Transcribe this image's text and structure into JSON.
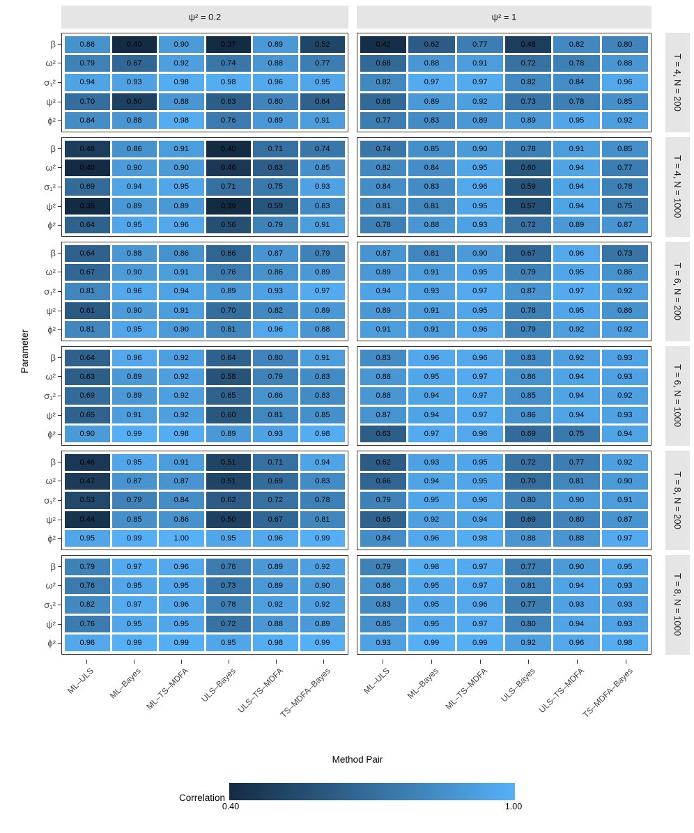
{
  "chart_data": {
    "type": "heatmap",
    "title": "",
    "xlabel": "Method Pair",
    "ylabel": "Parameter",
    "facet_cols": [
      "ψ² = 0.2",
      "ψ² = 1"
    ],
    "facet_rows": [
      "T = 4, N = 200",
      "T = 4, N = 1000",
      "T = 6, N = 200",
      "T = 6, N = 1000",
      "T = 8, N = 200",
      "T = 8, N = 1000"
    ],
    "x_categories": [
      "ML–ULS",
      "ML–Bayes",
      "ML–TS–MDFA",
      "ULS–Bayes",
      "ULS–TS–MDFA",
      "TS–MDFA–Bayes"
    ],
    "y_categories": [
      "β",
      "ω²",
      "σ₁²",
      "ψ²",
      "ϕ²"
    ],
    "legend": {
      "title": "Correlation",
      "min_label": "0.40",
      "max_label": "1.00",
      "domain": [
        0.4,
        1.0
      ],
      "low_color": "#132B43",
      "high_color": "#56B1F7"
    },
    "facets": [
      {
        "col_label": "ψ² = 0.2",
        "row_label": "T = 4, N = 200",
        "values": [
          [
            0.86,
            0.4,
            0.9,
            0.37,
            0.89,
            0.52
          ],
          [
            0.79,
            0.67,
            0.92,
            0.74,
            0.88,
            0.77
          ],
          [
            0.94,
            0.93,
            0.98,
            0.98,
            0.96,
            0.95
          ],
          [
            0.7,
            0.5,
            0.88,
            0.63,
            0.8,
            0.64
          ],
          [
            0.84,
            0.88,
            0.98,
            0.76,
            0.89,
            0.91
          ]
        ]
      },
      {
        "col_label": "ψ² = 1",
        "row_label": "T = 4, N = 200",
        "values": [
          [
            0.42,
            0.62,
            0.77,
            0.48,
            0.82,
            0.8
          ],
          [
            0.68,
            0.88,
            0.91,
            0.72,
            0.78,
            0.88
          ],
          [
            0.82,
            0.97,
            0.97,
            0.82,
            0.84,
            0.96
          ],
          [
            0.68,
            0.89,
            0.92,
            0.73,
            0.78,
            0.85
          ],
          [
            0.77,
            0.83,
            0.89,
            0.89,
            0.95,
            0.92
          ]
        ]
      },
      {
        "col_label": "ψ² = 0.2",
        "row_label": "T = 4, N = 1000",
        "values": [
          [
            0.48,
            0.86,
            0.91,
            0.4,
            0.71,
            0.74
          ],
          [
            0.4,
            0.9,
            0.9,
            0.46,
            0.63,
            0.85
          ],
          [
            0.69,
            0.94,
            0.95,
            0.71,
            0.75,
            0.93
          ],
          [
            0.35,
            0.89,
            0.89,
            0.39,
            0.59,
            0.83
          ],
          [
            0.64,
            0.95,
            0.96,
            0.56,
            0.79,
            0.91
          ]
        ]
      },
      {
        "col_label": "ψ² = 1",
        "row_label": "T = 4, N = 1000",
        "values": [
          [
            0.74,
            0.85,
            0.9,
            0.78,
            0.91,
            0.85
          ],
          [
            0.82,
            0.84,
            0.95,
            0.6,
            0.94,
            0.77
          ],
          [
            0.84,
            0.83,
            0.96,
            0.59,
            0.94,
            0.78
          ],
          [
            0.81,
            0.81,
            0.95,
            0.57,
            0.94,
            0.75
          ],
          [
            0.78,
            0.88,
            0.93,
            0.72,
            0.89,
            0.87
          ]
        ]
      },
      {
        "col_label": "ψ² = 0.2",
        "row_label": "T = 6, N = 200",
        "values": [
          [
            0.64,
            0.88,
            0.86,
            0.66,
            0.87,
            0.79
          ],
          [
            0.67,
            0.9,
            0.91,
            0.76,
            0.86,
            0.89
          ],
          [
            0.81,
            0.96,
            0.94,
            0.89,
            0.93,
            0.97
          ],
          [
            0.61,
            0.9,
            0.91,
            0.7,
            0.82,
            0.89
          ],
          [
            0.81,
            0.95,
            0.9,
            0.81,
            0.96,
            0.88
          ]
        ]
      },
      {
        "col_label": "ψ² = 1",
        "row_label": "T = 6, N = 200",
        "values": [
          [
            0.87,
            0.81,
            0.9,
            0.67,
            0.96,
            0.73
          ],
          [
            0.89,
            0.91,
            0.95,
            0.79,
            0.95,
            0.86
          ],
          [
            0.94,
            0.93,
            0.97,
            0.87,
            0.97,
            0.92
          ],
          [
            0.89,
            0.91,
            0.95,
            0.78,
            0.95,
            0.86
          ],
          [
            0.91,
            0.91,
            0.96,
            0.79,
            0.92,
            0.92
          ]
        ]
      },
      {
        "col_label": "ψ² = 0.2",
        "row_label": "T = 6, N = 1000",
        "values": [
          [
            0.64,
            0.96,
            0.92,
            0.64,
            0.8,
            0.91
          ],
          [
            0.63,
            0.89,
            0.92,
            0.58,
            0.79,
            0.83
          ],
          [
            0.69,
            0.89,
            0.92,
            0.65,
            0.86,
            0.83
          ],
          [
            0.65,
            0.91,
            0.92,
            0.6,
            0.81,
            0.85
          ],
          [
            0.9,
            0.99,
            0.98,
            0.89,
            0.93,
            0.98
          ]
        ]
      },
      {
        "col_label": "ψ² = 1",
        "row_label": "T = 6, N = 1000",
        "values": [
          [
            0.83,
            0.96,
            0.96,
            0.83,
            0.92,
            0.93
          ],
          [
            0.88,
            0.95,
            0.97,
            0.86,
            0.94,
            0.93
          ],
          [
            0.88,
            0.94,
            0.97,
            0.85,
            0.94,
            0.92
          ],
          [
            0.87,
            0.94,
            0.97,
            0.86,
            0.94,
            0.93
          ],
          [
            0.63,
            0.97,
            0.96,
            0.69,
            0.75,
            0.94
          ]
        ]
      },
      {
        "col_label": "ψ² = 0.2",
        "row_label": "T = 8, N = 200",
        "values": [
          [
            0.46,
            0.95,
            0.91,
            0.51,
            0.71,
            0.94
          ],
          [
            0.47,
            0.87,
            0.87,
            0.51,
            0.69,
            0.83
          ],
          [
            0.53,
            0.79,
            0.84,
            0.62,
            0.72,
            0.78
          ],
          [
            0.44,
            0.85,
            0.86,
            0.5,
            0.67,
            0.81
          ],
          [
            0.95,
            0.99,
            1.0,
            0.95,
            0.96,
            0.99
          ]
        ]
      },
      {
        "col_label": "ψ² = 1",
        "row_label": "T = 8, N = 200",
        "values": [
          [
            0.62,
            0.93,
            0.95,
            0.72,
            0.77,
            0.92
          ],
          [
            0.66,
            0.94,
            0.95,
            0.7,
            0.81,
            0.9
          ],
          [
            0.79,
            0.95,
            0.96,
            0.8,
            0.9,
            0.91
          ],
          [
            0.65,
            0.92,
            0.94,
            0.69,
            0.8,
            0.87
          ],
          [
            0.84,
            0.96,
            0.98,
            0.88,
            0.88,
            0.97
          ]
        ]
      },
      {
        "col_label": "ψ² = 0.2",
        "row_label": "T = 8, N = 1000",
        "values": [
          [
            0.79,
            0.97,
            0.96,
            0.76,
            0.89,
            0.92
          ],
          [
            0.76,
            0.95,
            0.95,
            0.73,
            0.89,
            0.9
          ],
          [
            0.82,
            0.97,
            0.96,
            0.78,
            0.92,
            0.92
          ],
          [
            0.76,
            0.95,
            0.95,
            0.72,
            0.88,
            0.89
          ],
          [
            0.96,
            0.99,
            0.99,
            0.95,
            0.98,
            0.99
          ]
        ]
      },
      {
        "col_label": "ψ² = 1",
        "row_label": "T = 8, N = 1000",
        "values": [
          [
            0.79,
            0.98,
            0.97,
            0.77,
            0.9,
            0.95
          ],
          [
            0.86,
            0.95,
            0.97,
            0.81,
            0.94,
            0.93
          ],
          [
            0.83,
            0.95,
            0.96,
            0.77,
            0.93,
            0.93
          ],
          [
            0.85,
            0.95,
            0.97,
            0.8,
            0.94,
            0.93
          ],
          [
            0.93,
            0.99,
            0.99,
            0.92,
            0.96,
            0.98
          ]
        ]
      }
    ]
  }
}
